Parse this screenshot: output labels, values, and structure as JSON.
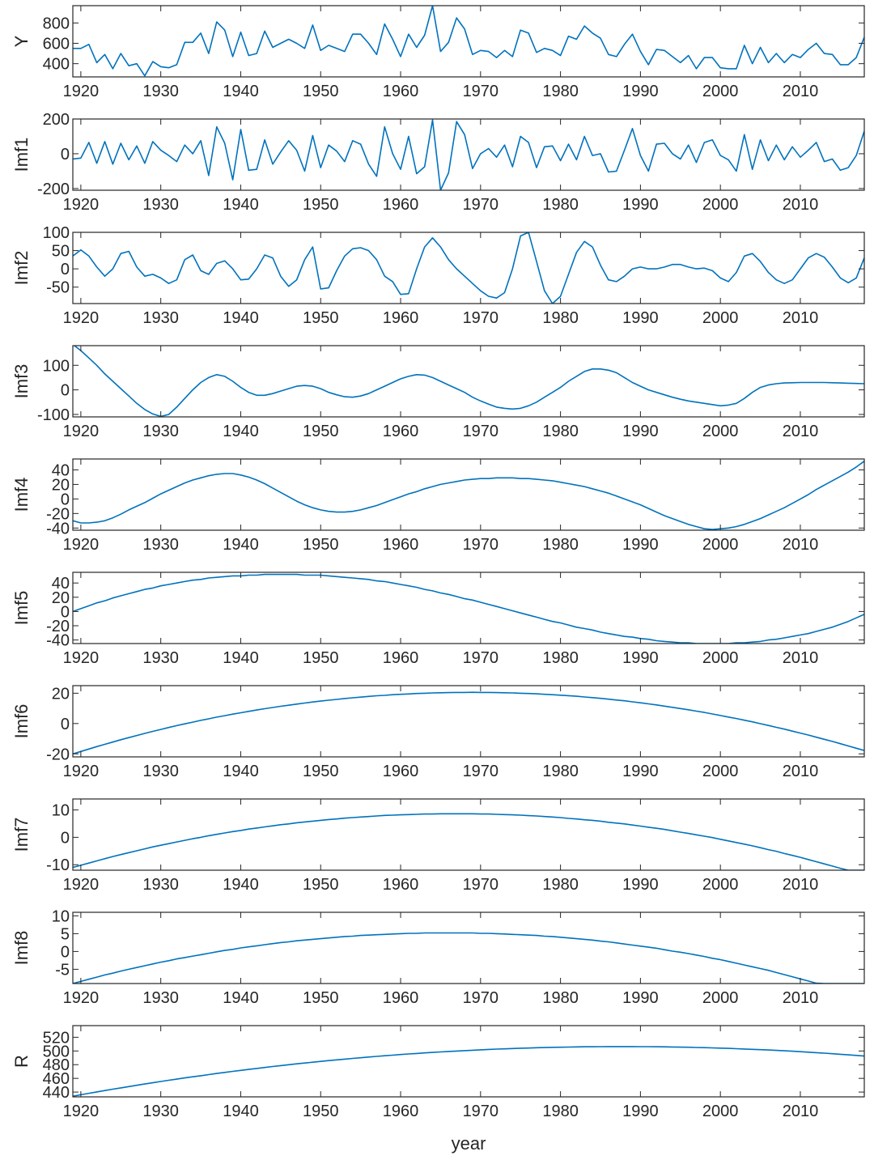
{
  "chart_data": {
    "type": "line",
    "xlabel": "year",
    "xlim": [
      1919,
      2018
    ],
    "xticks": [
      1920,
      1930,
      1940,
      1950,
      1960,
      1970,
      1980,
      1990,
      2000,
      2010
    ],
    "line_color": "#0072BD",
    "axis_color": "#262626",
    "x": [
      1919,
      1920,
      1921,
      1922,
      1923,
      1924,
      1925,
      1926,
      1927,
      1928,
      1929,
      1930,
      1931,
      1932,
      1933,
      1934,
      1935,
      1936,
      1937,
      1938,
      1939,
      1940,
      1941,
      1942,
      1943,
      1944,
      1945,
      1946,
      1947,
      1948,
      1949,
      1950,
      1951,
      1952,
      1953,
      1954,
      1955,
      1956,
      1957,
      1958,
      1959,
      1960,
      1961,
      1962,
      1963,
      1964,
      1965,
      1966,
      1967,
      1968,
      1969,
      1970,
      1971,
      1972,
      1973,
      1974,
      1975,
      1976,
      1977,
      1978,
      1979,
      1980,
      1981,
      1982,
      1983,
      1984,
      1985,
      1986,
      1987,
      1988,
      1989,
      1990,
      1991,
      1992,
      1993,
      1994,
      1995,
      1996,
      1997,
      1998,
      1999,
      2000,
      2001,
      2002,
      2003,
      2004,
      2005,
      2006,
      2007,
      2008,
      2009,
      2010,
      2011,
      2012,
      2013,
      2014,
      2015,
      2016,
      2017,
      2018
    ],
    "panels": [
      {
        "name": "Y",
        "ylabel": "Y",
        "ylim": [
          270,
          970
        ],
        "yticks": [
          400,
          600,
          800
        ],
        "values": [
          550,
          550,
          590,
          410,
          490,
          350,
          500,
          380,
          400,
          280,
          420,
          370,
          360,
          390,
          610,
          610,
          700,
          500,
          810,
          730,
          470,
          710,
          480,
          500,
          720,
          560,
          600,
          640,
          600,
          550,
          780,
          530,
          580,
          550,
          520,
          690,
          690,
          600,
          490,
          790,
          640,
          470,
          690,
          560,
          680,
          970,
          520,
          610,
          850,
          740,
          490,
          530,
          520,
          460,
          530,
          470,
          730,
          700,
          510,
          550,
          530,
          480,
          670,
          640,
          770,
          700,
          650,
          490,
          470,
          590,
          690,
          520,
          390,
          540,
          530,
          470,
          410,
          480,
          350,
          460,
          460,
          360,
          350,
          350,
          580,
          400,
          560,
          410,
          500,
          410,
          490,
          460,
          540,
          600,
          500,
          490,
          390,
          390,
          460,
          660
        ]
      },
      {
        "name": "Imf1",
        "ylabel": "Imf1",
        "ylim": [
          -210,
          200
        ],
        "yticks": [
          -200,
          0,
          200
        ],
        "values": [
          -30,
          -25,
          65,
          -55,
          70,
          -60,
          60,
          -35,
          45,
          -55,
          70,
          20,
          -10,
          -45,
          50,
          0,
          75,
          -125,
          155,
          60,
          -150,
          140,
          -95,
          -90,
          80,
          -60,
          10,
          75,
          20,
          -100,
          105,
          -80,
          50,
          15,
          -45,
          75,
          55,
          -60,
          -130,
          155,
          0,
          -90,
          100,
          -115,
          -75,
          195,
          -210,
          -110,
          185,
          110,
          -85,
          0,
          30,
          -20,
          50,
          -75,
          100,
          65,
          -80,
          40,
          45,
          -40,
          55,
          -35,
          100,
          -10,
          0,
          -105,
          -100,
          20,
          145,
          -10,
          -100,
          55,
          60,
          0,
          -30,
          50,
          -50,
          65,
          80,
          -10,
          -35,
          -100,
          110,
          -90,
          80,
          -40,
          50,
          -35,
          40,
          -20,
          20,
          65,
          -45,
          -30,
          -95,
          -80,
          -10,
          130
        ]
      },
      {
        "name": "Imf2",
        "ylabel": "Imf2",
        "ylim": [
          -95,
          100
        ],
        "yticks": [
          -50,
          0,
          50,
          100
        ],
        "values": [
          35,
          52,
          35,
          5,
          -20,
          0,
          42,
          48,
          5,
          -20,
          -15,
          -25,
          -40,
          -30,
          25,
          38,
          -5,
          -15,
          15,
          22,
          0,
          -30,
          -28,
          0,
          38,
          30,
          -20,
          -48,
          -30,
          25,
          60,
          -55,
          -52,
          -5,
          35,
          55,
          58,
          50,
          25,
          -20,
          -35,
          -70,
          -68,
          0,
          60,
          85,
          60,
          25,
          0,
          -20,
          -40,
          -60,
          -75,
          -80,
          -65,
          0,
          90,
          100,
          20,
          -60,
          -95,
          -75,
          -15,
          45,
          75,
          60,
          10,
          -30,
          -35,
          -20,
          0,
          5,
          0,
          0,
          5,
          12,
          12,
          5,
          0,
          2,
          -5,
          -25,
          -35,
          -10,
          35,
          42,
          20,
          -10,
          -30,
          -40,
          -30,
          0,
          30,
          42,
          32,
          5,
          -25,
          -38,
          -25,
          30
        ]
      },
      {
        "name": "Imf3",
        "ylabel": "Imf3",
        "ylim": [
          -110,
          180
        ],
        "yticks": [
          -100,
          0,
          100
        ],
        "values": [
          185,
          160,
          130,
          100,
          65,
          35,
          5,
          -25,
          -55,
          -80,
          -98,
          -108,
          -100,
          -70,
          -35,
          0,
          30,
          50,
          62,
          55,
          35,
          10,
          -10,
          -22,
          -22,
          -15,
          -5,
          5,
          15,
          18,
          15,
          5,
          -10,
          -20,
          -28,
          -30,
          -25,
          -15,
          0,
          15,
          30,
          45,
          55,
          62,
          60,
          50,
          35,
          20,
          5,
          -10,
          -30,
          -45,
          -58,
          -70,
          -75,
          -78,
          -75,
          -65,
          -50,
          -30,
          -10,
          10,
          35,
          55,
          75,
          85,
          85,
          80,
          70,
          50,
          30,
          15,
          0,
          -10,
          -20,
          -30,
          -38,
          -45,
          -50,
          -55,
          -60,
          -65,
          -62,
          -55,
          -35,
          -10,
          10,
          20,
          25,
          28,
          29,
          30,
          30,
          30,
          30,
          29,
          28,
          27,
          26,
          25
        ]
      },
      {
        "name": "Imf4",
        "ylabel": "Imf4",
        "ylim": [
          -43,
          55
        ],
        "yticks": [
          -40,
          -20,
          0,
          20,
          40
        ],
        "values": [
          -30,
          -33,
          -33,
          -32,
          -30,
          -26,
          -21,
          -15,
          -10,
          -5,
          1,
          7,
          12,
          17,
          22,
          26,
          29,
          32,
          34,
          35,
          35,
          33,
          30,
          26,
          21,
          15,
          9,
          3,
          -3,
          -8,
          -12,
          -15,
          -17,
          -18,
          -18,
          -17,
          -15,
          -12,
          -9,
          -5,
          -1,
          3,
          7,
          10,
          14,
          17,
          20,
          22,
          24,
          26,
          27,
          28,
          28,
          29,
          29,
          29,
          28,
          28,
          27,
          26,
          25,
          23,
          21,
          19,
          17,
          14,
          11,
          8,
          4,
          0,
          -4,
          -8,
          -13,
          -18,
          -23,
          -27,
          -31,
          -35,
          -38,
          -41,
          -42,
          -41,
          -40,
          -38,
          -35,
          -31,
          -27,
          -22,
          -17,
          -12,
          -6,
          0,
          6,
          13,
          19,
          25,
          31,
          37,
          44,
          52
        ]
      },
      {
        "name": "Imf5",
        "ylabel": "Imf5",
        "ylim": [
          -45,
          55
        ],
        "yticks": [
          -40,
          -20,
          0,
          20,
          40
        ],
        "values": [
          0,
          4,
          8,
          12,
          15,
          19,
          22,
          25,
          28,
          31,
          33,
          36,
          38,
          40,
          42,
          44,
          45,
          47,
          48,
          49,
          50,
          50,
          51,
          51,
          52,
          52,
          52,
          52,
          52,
          51,
          51,
          51,
          50,
          49,
          48,
          47,
          46,
          45,
          43,
          42,
          40,
          38,
          36,
          34,
          31,
          29,
          26,
          24,
          21,
          18,
          16,
          13,
          10,
          7,
          4,
          1,
          -2,
          -5,
          -8,
          -11,
          -14,
          -16,
          -19,
          -22,
          -24,
          -26,
          -29,
          -31,
          -33,
          -35,
          -36,
          -38,
          -39,
          -41,
          -42,
          -43,
          -44,
          -44,
          -45,
          -45,
          -45,
          -45,
          -45,
          -44,
          -44,
          -43,
          -42,
          -40,
          -39,
          -37,
          -35,
          -33,
          -31,
          -28,
          -25,
          -22,
          -18,
          -14,
          -9,
          -4
        ]
      },
      {
        "name": "Imf6",
        "ylabel": "Imf6",
        "ylim": [
          -22,
          25
        ],
        "yticks": [
          -20,
          0,
          20
        ],
        "values": [
          -20.0,
          -18.4,
          -16.8,
          -15.2,
          -13.7,
          -12.2,
          -10.7,
          -9.3,
          -7.9,
          -6.5,
          -5.2,
          -3.9,
          -2.6,
          -1.4,
          -0.2,
          0.9,
          2.1,
          3.1,
          4.2,
          5.2,
          6.2,
          7.1,
          8.0,
          8.9,
          9.8,
          10.6,
          11.4,
          12.1,
          12.8,
          13.5,
          14.2,
          14.8,
          15.4,
          15.9,
          16.5,
          17.0,
          17.4,
          17.9,
          18.3,
          18.6,
          19.0,
          19.3,
          19.5,
          19.8,
          20.0,
          20.2,
          20.3,
          20.4,
          20.5,
          20.5,
          20.6,
          20.5,
          20.5,
          20.4,
          20.3,
          20.2,
          20.0,
          19.8,
          19.6,
          19.3,
          19.0,
          18.7,
          18.4,
          18.0,
          17.5,
          17.1,
          16.6,
          16.1,
          15.5,
          15.0,
          14.3,
          13.7,
          13.0,
          12.3,
          11.5,
          10.7,
          9.9,
          9.1,
          8.2,
          7.3,
          6.3,
          5.3,
          4.3,
          3.3,
          2.2,
          1.1,
          -0.1,
          -1.3,
          -2.5,
          -3.7,
          -5.0,
          -6.3,
          -7.6,
          -9.0,
          -10.4,
          -11.8,
          -13.3,
          -14.8,
          -16.3,
          -17.8
        ]
      },
      {
        "name": "Imf7",
        "ylabel": "Imf7",
        "ylim": [
          -12,
          14
        ],
        "yticks": [
          -10,
          0,
          10
        ],
        "values": [
          -11.0,
          -10.2,
          -9.4,
          -8.6,
          -7.8,
          -7.0,
          -6.3,
          -5.6,
          -4.9,
          -4.2,
          -3.5,
          -2.9,
          -2.3,
          -1.7,
          -1.1,
          -0.5,
          0.0,
          0.6,
          1.1,
          1.6,
          2.1,
          2.5,
          3.0,
          3.4,
          3.8,
          4.2,
          4.6,
          4.9,
          5.3,
          5.6,
          5.9,
          6.2,
          6.5,
          6.7,
          7.0,
          7.2,
          7.4,
          7.6,
          7.8,
          8.0,
          8.1,
          8.2,
          8.3,
          8.4,
          8.5,
          8.5,
          8.6,
          8.6,
          8.6,
          8.6,
          8.6,
          8.5,
          8.5,
          8.4,
          8.3,
          8.2,
          8.1,
          7.9,
          7.8,
          7.6,
          7.4,
          7.2,
          6.9,
          6.7,
          6.4,
          6.2,
          5.9,
          5.5,
          5.2,
          4.9,
          4.5,
          4.1,
          3.7,
          3.3,
          2.9,
          2.4,
          1.9,
          1.4,
          0.9,
          0.4,
          -0.1,
          -0.7,
          -1.3,
          -1.9,
          -2.5,
          -3.1,
          -3.8,
          -4.5,
          -5.1,
          -5.9,
          -6.6,
          -7.3,
          -8.1,
          -8.9,
          -9.7,
          -10.5,
          -11.3,
          -12.0,
          -12.0,
          -12.0
        ]
      },
      {
        "name": "Imf8",
        "ylabel": "Imf8",
        "ylim": [
          -9,
          11
        ],
        "yticks": [
          -5,
          0,
          5,
          10
        ],
        "values": [
          -9.0,
          -8.4,
          -7.8,
          -7.2,
          -6.6,
          -6.1,
          -5.5,
          -5.0,
          -4.5,
          -4.0,
          -3.5,
          -3.0,
          -2.6,
          -2.1,
          -1.7,
          -1.3,
          -0.9,
          -0.5,
          -0.1,
          0.3,
          0.6,
          1.0,
          1.3,
          1.6,
          1.9,
          2.2,
          2.5,
          2.7,
          3.0,
          3.2,
          3.4,
          3.6,
          3.8,
          4.0,
          4.2,
          4.3,
          4.5,
          4.6,
          4.7,
          4.8,
          4.9,
          5.0,
          5.1,
          5.1,
          5.2,
          5.2,
          5.2,
          5.2,
          5.2,
          5.2,
          5.2,
          5.1,
          5.1,
          5.0,
          4.9,
          4.8,
          4.7,
          4.6,
          4.5,
          4.3,
          4.2,
          4.0,
          3.8,
          3.6,
          3.4,
          3.2,
          2.9,
          2.7,
          2.4,
          2.1,
          1.8,
          1.5,
          1.2,
          0.9,
          0.5,
          0.1,
          -0.2,
          -0.6,
          -1.0,
          -1.4,
          -1.9,
          -2.3,
          -2.8,
          -3.3,
          -3.8,
          -4.3,
          -4.8,
          -5.3,
          -5.9,
          -6.5,
          -7.1,
          -7.7,
          -8.3,
          -8.9,
          -9.0,
          -9.0,
          -9.0,
          -9.0,
          -9.0,
          -9.0
        ]
      },
      {
        "name": "R",
        "ylabel": "R",
        "ylim": [
          433,
          537
        ],
        "yticks": [
          440,
          460,
          480,
          500,
          520
        ],
        "values": [
          434.0,
          436.1,
          438.2,
          440.2,
          442.2,
          444.2,
          446.1,
          448.0,
          449.9,
          451.8,
          453.6,
          455.4,
          457.2,
          458.9,
          460.6,
          462.3,
          463.9,
          465.5,
          467.1,
          468.7,
          470.2,
          471.7,
          473.1,
          474.5,
          475.9,
          477.3,
          478.6,
          479.9,
          481.2,
          482.4,
          483.6,
          484.8,
          485.9,
          487.0,
          488.1,
          489.1,
          490.1,
          491.1,
          492.1,
          493.0,
          493.9,
          494.8,
          495.6,
          496.4,
          497.2,
          497.9,
          498.6,
          499.3,
          499.9,
          500.5,
          501.1,
          501.7,
          502.2,
          502.7,
          503.1,
          503.6,
          504.0,
          504.3,
          504.7,
          505.0,
          505.3,
          505.5,
          505.7,
          505.9,
          506.1,
          506.2,
          506.3,
          506.4,
          506.4,
          506.4,
          506.4,
          506.3,
          506.3,
          506.1,
          506.0,
          505.8,
          505.6,
          505.4,
          505.1,
          504.8,
          504.5,
          504.1,
          503.8,
          503.3,
          502.9,
          502.4,
          501.9,
          501.4,
          500.8,
          500.2,
          499.6,
          498.9,
          498.2,
          497.5,
          496.8,
          496.0,
          495.2,
          494.3,
          493.5,
          492.6
        ]
      }
    ]
  }
}
